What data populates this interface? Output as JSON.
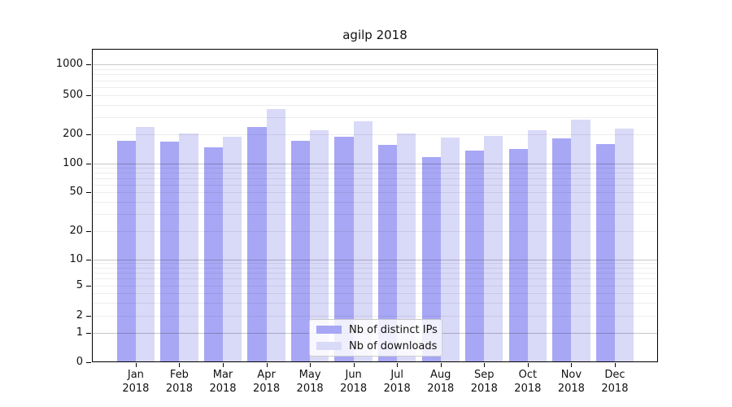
{
  "chart_data": {
    "type": "bar",
    "title": "agilp 2018",
    "categories": [
      "Jan 2018",
      "Feb 2018",
      "Mar 2018",
      "Apr 2018",
      "May 2018",
      "Jun 2018",
      "Jul 2018",
      "Aug 2018",
      "Sep 2018",
      "Oct 2018",
      "Nov 2018",
      "Dec 2018"
    ],
    "x_tick_month": [
      "Jan",
      "Feb",
      "Mar",
      "Apr",
      "May",
      "Jun",
      "Jul",
      "Aug",
      "Sep",
      "Oct",
      "Nov",
      "Dec"
    ],
    "x_tick_year": "2018",
    "series": [
      {
        "name": "Nb of distinct IPs",
        "color": "#a7a7f5",
        "values": [
          172,
          168,
          146,
          238,
          170,
          190,
          155,
          116,
          136,
          140,
          182,
          159
        ]
      },
      {
        "name": "Nb of downloads",
        "color": "#d9d9f8",
        "values": [
          237,
          202,
          188,
          360,
          220,
          269,
          205,
          184,
          191,
          219,
          281,
          229
        ]
      }
    ],
    "y_axis": {
      "scale": "log with 0 baseline",
      "ticks": [
        0,
        1,
        2,
        5,
        10,
        20,
        50,
        100,
        200,
        500,
        1000
      ],
      "range_top": 1400
    },
    "grid": {
      "major_lines": [
        1,
        10,
        100,
        1000
      ],
      "minor_lines": [
        2,
        3,
        4,
        5,
        6,
        7,
        8,
        9,
        20,
        30,
        40,
        50,
        60,
        70,
        80,
        90,
        200,
        300,
        400,
        500,
        600,
        700,
        800,
        900
      ],
      "major_color": "#c9c9c9",
      "minor_color": "#ededed"
    },
    "legend": {
      "position": "lower center",
      "items": [
        "Nb of distinct IPs",
        "Nb of downloads"
      ]
    }
  }
}
